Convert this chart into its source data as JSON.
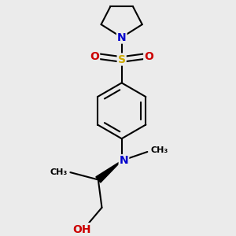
{
  "bg_color": "#ebebeb",
  "atom_colors": {
    "C": "#000000",
    "N": "#0000cc",
    "O": "#cc0000",
    "S": "#ccaa00",
    "H": "#000000"
  },
  "bond_color": "#000000",
  "bond_width": 1.5,
  "figsize": [
    3.0,
    3.0
  ],
  "dpi": 100,
  "xlim": [
    0,
    3.0
  ],
  "ylim": [
    0,
    3.0
  ]
}
